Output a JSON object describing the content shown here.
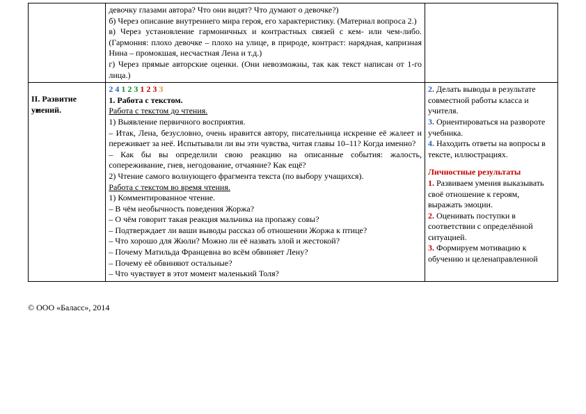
{
  "row1": {
    "col1": "",
    "col2_lines": [
      "девочку глазами автора? Что они видят? Что думают о девочке?)",
      "б)  Через  описание  внутреннего  мира  героя,  его  характеристику.  (Материал вопроса 2.)",
      "в) Через установление гармоничных и контрастных связей с кем- или чем-либо. (Гармония: плохо девочке – плохо на улице, в природе, контраст: нарядная, капризная Нина – промокшая, несчастная Лена и т.д.)",
      "г) Через прямые авторские оценки. (Они невозможны, так как текст написан от 1-го лица.)"
    ],
    "col3": ""
  },
  "row2": {
    "col1_label1": "II.",
    "col1_label2": "Развитие",
    "col1_label3_base": "умений.",
    "col1_label3_over": "е",
    "seq": [
      {
        "v": "2",
        "c": "num-blue"
      },
      {
        "v": "4",
        "c": "num-blue"
      },
      {
        "v": "1",
        "c": "num-green"
      },
      {
        "v": "2",
        "c": "num-green"
      },
      {
        "v": "3",
        "c": "num-green"
      },
      {
        "v": "1",
        "c": "num-red"
      },
      {
        "v": "2",
        "c": "num-red"
      },
      {
        "v": "3",
        "c": "num-red"
      },
      {
        "v": "3",
        "c": "num-orange"
      }
    ],
    "work_title": "1. Работа с текстом.",
    "before_reading": "Работа с текстом до чтения.",
    "p1": "1) Выявление первичного восприятия.",
    "p2": "–  Итак,  Лена,  безусловно,  очень  нравится  автору,  писательница  искренне  её жалеет и переживает за неё. Испытывали ли вы эти чувства, читая главы 10–11? Когда именно?",
    "p3": "– Как бы вы определили свою реакцию на описанные события: жалость, сопереживание, гнев, негодование, отчаяние? Как ещё?",
    "p4": "2) Чтение самого волнующего фрагмента текста (по выбору учащихся).",
    "during_reading": "Работа с текстом во время чтения.",
    "p5": "1) Комментированное чтение.",
    "p6": "– В чём необычность поведения Жоржа?",
    "p7": "– О чём говорит такая реакция мальчика на пропажу совы?",
    "p8": "– Подтверждает ли ваши выводы рассказ об отношении Жоржа к птице?",
    "p9": "– Что хорошо для Жюли? Можно ли её назвать злой и жестокой?",
    "p10": "– Почему Матильда Францевна во всём обвиняет Лену?",
    "p11": "– Почему её обвиняют остальные?",
    "p12": "– Что чувствует в этот момент маленький Толя?",
    "col3": {
      "r1_num": "2.",
      "r1_text": " Делать выводы в результате совместной работы класса и учителя.",
      "r2_num": "3.",
      "r2_text": " Ориентироваться на развороте учебника.",
      "r3_num": "4.",
      "r3_text": " Находить ответы на вопросы в тексте, иллюстрациях.",
      "pers_title": "Личностные результаты",
      "pr1_num": "1.",
      "pr1_text": " Развиваем умения выказывать своё отношение к героям, выражать эмоции.",
      "pr2_num": "2.",
      "pr2_text": " Оценивать поступки в соответствии с определённой ситуацией.",
      "pr3_num": "3.",
      "pr3_text": " Формируем мотивацию к обучению и целенаправленной"
    }
  },
  "footer": "© ООО «Баласс», 2014"
}
